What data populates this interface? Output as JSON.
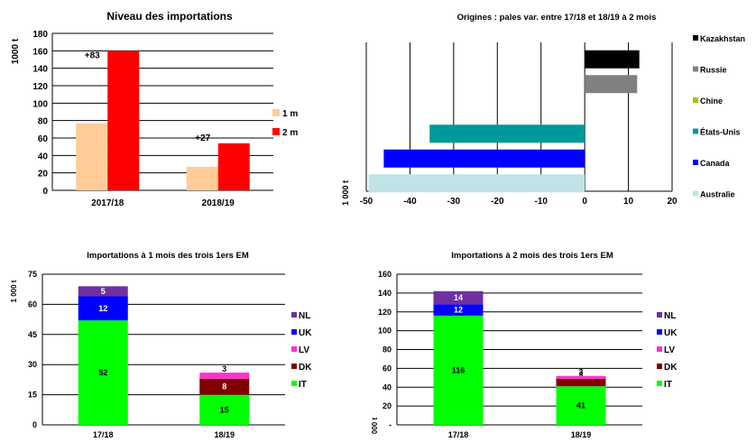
{
  "chart_data": [
    {
      "id": "c1",
      "type": "bar",
      "title": "Niveau des importations",
      "ylabel": "1000 t",
      "ylim": [
        0,
        180
      ],
      "yticks": [
        0,
        20,
        40,
        60,
        80,
        100,
        120,
        140,
        160,
        180
      ],
      "grid": true,
      "legend_position": "right",
      "categories": [
        "2017/18",
        "2018/19"
      ],
      "series": [
        {
          "name": "1 m",
          "color": "#FFCC99",
          "values": [
            77,
            27
          ]
        },
        {
          "name": "2 m",
          "color": "#FF0000",
          "values": [
            160,
            54
          ]
        }
      ],
      "annotations": [
        "+83",
        "+27"
      ]
    },
    {
      "id": "c2",
      "type": "bar",
      "orientation": "horizontal",
      "title": "Origines : pales var. entre 17/18 et 18/19 à 2 mois",
      "xlabel": "1 000 t",
      "xlim": [
        -50,
        20
      ],
      "xticks": [
        -50,
        -40,
        -30,
        -20,
        -10,
        0,
        10,
        20
      ],
      "xtick_labels": [
        "-50",
        "-40",
        "-30",
        "-20",
        "-10",
        "0",
        "10",
        "20"
      ],
      "grid": true,
      "legend_position": "right",
      "categories": [
        "Kazakhstan",
        "Russie",
        "Chine",
        "États-Unis",
        "Canada",
        "Australie"
      ],
      "colors": [
        "#000000",
        "#808080",
        "#99CC00",
        "#009999",
        "#0000FF",
        "#BFE3E6"
      ],
      "values": [
        12.5,
        12,
        0,
        -35.5,
        -46,
        -49.5
      ]
    },
    {
      "id": "c3",
      "type": "bar",
      "stacked": true,
      "title": "Importations à 1 mois des trois 1ers EM",
      "ylabel": "1 000 t",
      "ylim": [
        0,
        75
      ],
      "yticks": [
        0,
        15,
        30,
        45,
        60,
        75
      ],
      "grid": true,
      "legend_position": "right",
      "categories": [
        "17/18",
        "18/19"
      ],
      "series": [
        {
          "name": "IT",
          "color": "#00FF00",
          "values": [
            52,
            15
          ]
        },
        {
          "name": "DK",
          "color": "#800000",
          "values": [
            0,
            8
          ]
        },
        {
          "name": "LV",
          "color": "#FF33CC",
          "values": [
            0,
            3
          ]
        },
        {
          "name": "UK",
          "color": "#0000FF",
          "values": [
            12,
            0
          ]
        },
        {
          "name": "NL",
          "color": "#7030A0",
          "values": [
            5,
            0
          ]
        }
      ],
      "legend_order": [
        "NL",
        "UK",
        "LV",
        "DK",
        "IT"
      ]
    },
    {
      "id": "c4",
      "type": "bar",
      "stacked": true,
      "title": "Importations à 2 mois des trois 1ers EM",
      "ylabel": "000 t",
      "ylim": [
        0,
        160
      ],
      "yticks": [
        0,
        20,
        40,
        60,
        80,
        100,
        120,
        140,
        160
      ],
      "ytick_labels": [
        "-",
        "20",
        "40",
        "60",
        "80",
        "100",
        "120",
        "140",
        "160"
      ],
      "grid": true,
      "legend_position": "right",
      "categories": [
        "17/18",
        "18/19"
      ],
      "series": [
        {
          "name": "IT",
          "color": "#00FF00",
          "values": [
            116,
            41
          ]
        },
        {
          "name": "DK",
          "color": "#800000",
          "values": [
            0,
            8
          ]
        },
        {
          "name": "LV",
          "color": "#FF33CC",
          "values": [
            0,
            3
          ]
        },
        {
          "name": "UK",
          "color": "#0000FF",
          "values": [
            12,
            0
          ]
        },
        {
          "name": "NL",
          "color": "#7030A0",
          "values": [
            14,
            0
          ]
        }
      ],
      "legend_order": [
        "NL",
        "UK",
        "LV",
        "DK",
        "IT"
      ]
    }
  ]
}
